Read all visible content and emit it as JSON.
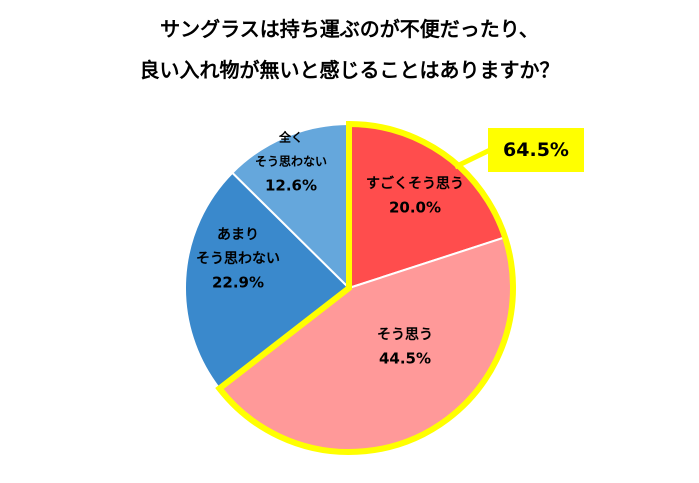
{
  "title_lines": [
    "サングラスは持ち運ぶのが不便だったり、",
    "良い入れ物が無いと感じることはありますか？"
  ],
  "callout_value": "64.5%",
  "colors": {
    "highlight_border": "#ffff00",
    "callout_bg": "#ffff00",
    "slice_strong_agree": "#ff4d4d",
    "slice_agree": "#ff9999",
    "slice_somewhat_disagree": "#3a89cc",
    "slice_strong_disagree": "#65a7dc"
  },
  "chart_data": {
    "type": "pie",
    "title": "サングラスは持ち運ぶのが不便だったり、良い入れ物が無いと感じることはありますか？",
    "slices": [
      {
        "label_lines": [
          "すごくそう思う"
        ],
        "value": 20.0,
        "value_label": "20.0%"
      },
      {
        "label_lines": [
          "そう思う"
        ],
        "value": 44.5,
        "value_label": "44.5%"
      },
      {
        "label_lines": [
          "あまり",
          "そう思わない"
        ],
        "value": 22.9,
        "value_label": "22.9%"
      },
      {
        "label_lines": [
          "全く",
          "そう思わない"
        ],
        "value": 12.6,
        "value_label": "12.6%"
      }
    ],
    "highlighted_group_total": "64.5%",
    "start_angle": "12 o'clock",
    "direction": "clockwise"
  }
}
